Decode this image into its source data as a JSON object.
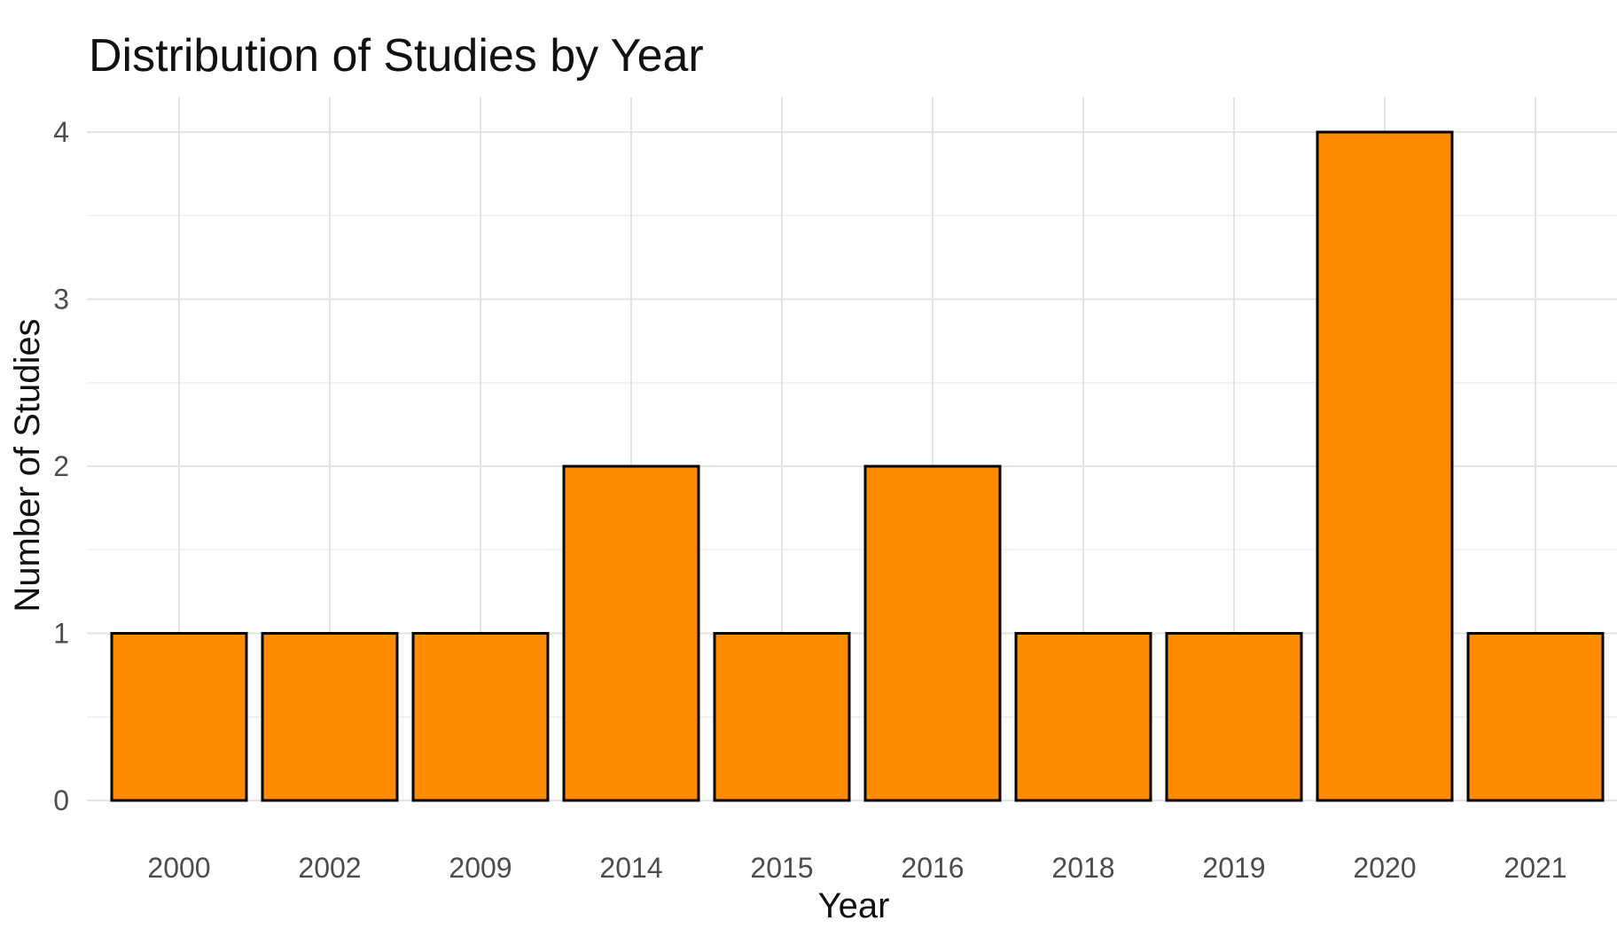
{
  "chart_data": {
    "type": "bar",
    "title": "Distribution of Studies by Year",
    "xlabel": "Year",
    "ylabel": "Number of Studies",
    "categories": [
      "2000",
      "2002",
      "2009",
      "2014",
      "2015",
      "2016",
      "2018",
      "2019",
      "2020",
      "2021"
    ],
    "values": [
      1,
      1,
      1,
      2,
      1,
      2,
      1,
      1,
      4,
      1
    ],
    "ylim": [
      0,
      4.2
    ],
    "yticks": [
      "0",
      "1",
      "2",
      "3",
      "4"
    ],
    "grid": true,
    "bar_color": "#ff8c00",
    "bar_outline_color": "#000000"
  }
}
